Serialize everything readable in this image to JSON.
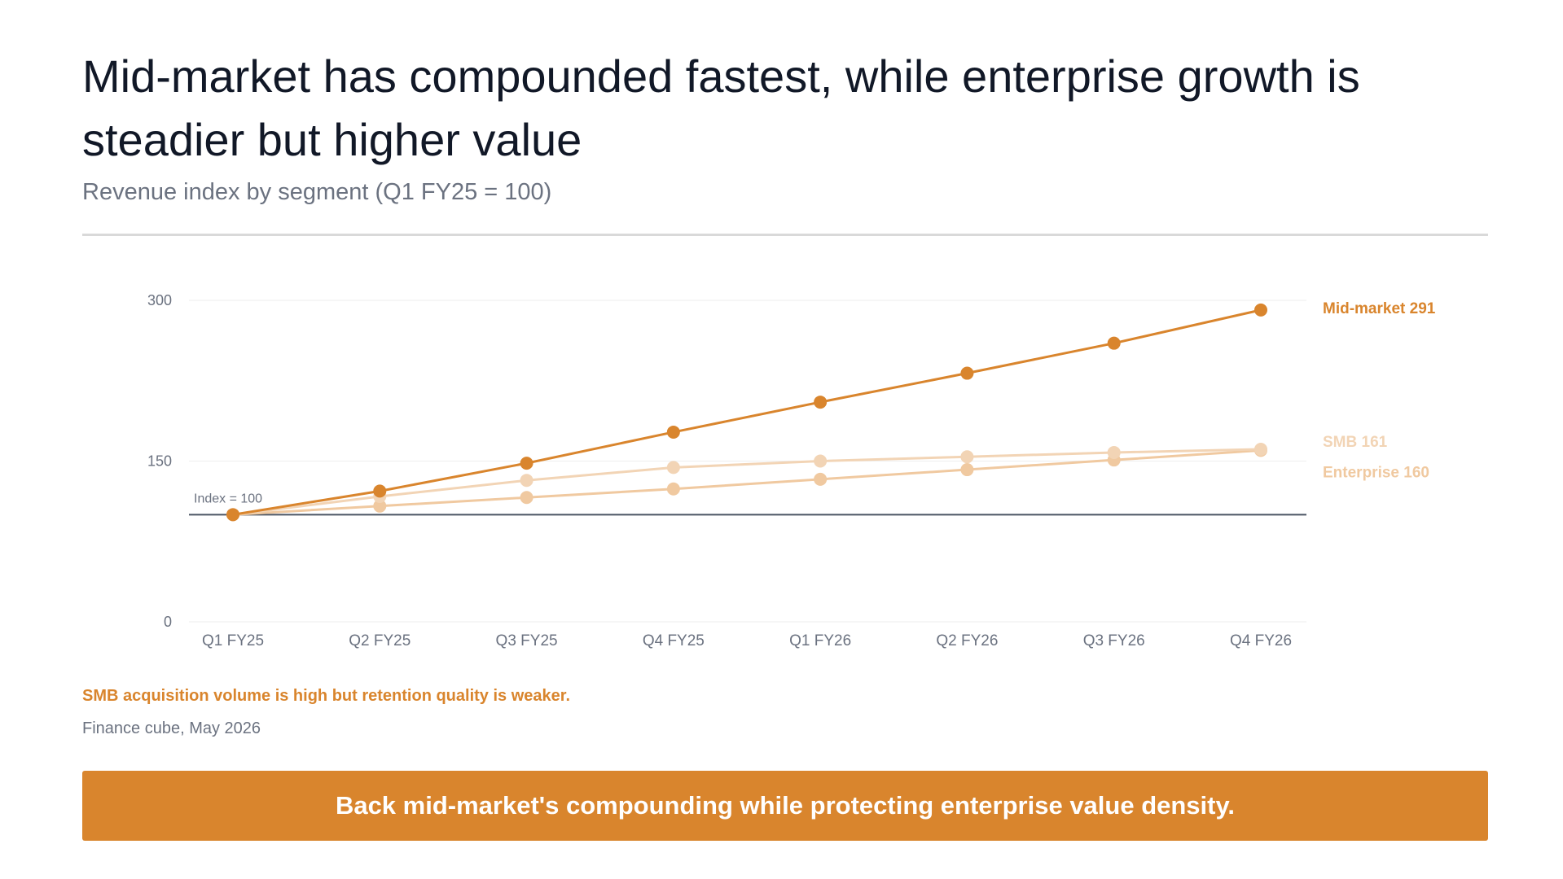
{
  "header": {
    "title": "Mid-market has compounded fastest, while enterprise growth is steadier but higher value",
    "subtitle": "Revenue index by segment (Q1 FY25 = 100)"
  },
  "chart_data": {
    "type": "line",
    "categories": [
      "Q1 FY25",
      "Q2 FY25",
      "Q3 FY25",
      "Q4 FY25",
      "Q1 FY26",
      "Q2 FY26",
      "Q3 FY26",
      "Q4 FY26"
    ],
    "ylim": [
      0,
      300
    ],
    "yticks": [
      0,
      150,
      300
    ],
    "grid": true,
    "reference_line": {
      "value": 100,
      "label": "Index = 100"
    },
    "series": [
      {
        "name": "Enterprise",
        "end_label": "Enterprise 160",
        "values": [
          100,
          108,
          116,
          124,
          133,
          142,
          151,
          160
        ],
        "color": "#f0c9a0"
      },
      {
        "name": "SMB",
        "end_label": "SMB 161",
        "values": [
          100,
          117,
          132,
          144,
          150,
          154,
          158,
          161
        ],
        "color": "#f2d4b5"
      },
      {
        "name": "Mid-market",
        "end_label": "Mid-market 291",
        "values": [
          100,
          122,
          148,
          177,
          205,
          232,
          260,
          291
        ],
        "color": "#d9852d"
      }
    ]
  },
  "annotations": {
    "note": "SMB acquisition volume is high but retention quality is weaker.",
    "source": "Finance cube, May 2026"
  },
  "callout": {
    "text": "Back mid-market's compounding while protecting enterprise value density."
  },
  "colors": {
    "accent": "#d9852d",
    "title": "#111827",
    "muted": "#6b7280"
  }
}
